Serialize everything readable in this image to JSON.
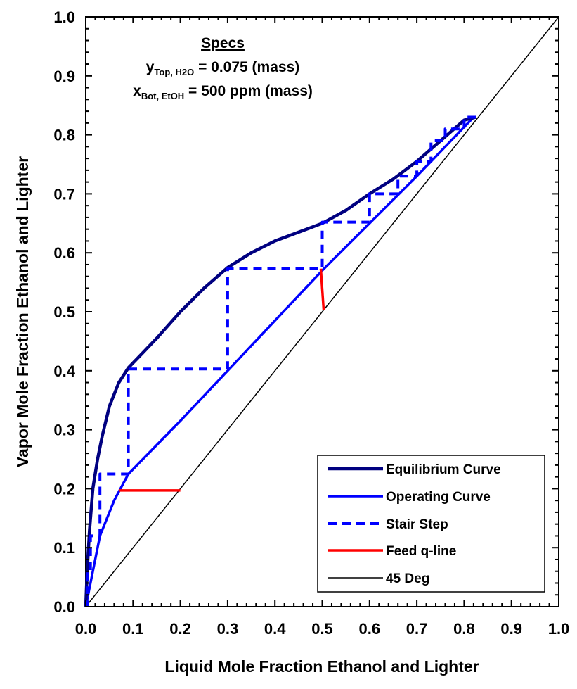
{
  "chart_data": {
    "type": "line",
    "xlabel": "Liquid Mole Fraction Ethanol and Lighter",
    "ylabel": "Vapor Mole Fraction Ethanol and Lighter",
    "xlim": [
      0,
      1
    ],
    "ylim": [
      0,
      1
    ],
    "x_ticks": [
      "0.0",
      "0.1",
      "0.2",
      "0.3",
      "0.4",
      "0.5",
      "0.6",
      "0.7",
      "0.8",
      "0.9",
      "1.0"
    ],
    "y_ticks": [
      "0.0",
      "0.1",
      "0.2",
      "0.3",
      "0.4",
      "0.5",
      "0.6",
      "0.7",
      "0.8",
      "0.9",
      "1.0"
    ],
    "grid": false,
    "legend_position": "bottom-right",
    "specs": {
      "title": "Specs",
      "line1": {
        "var": "y",
        "sub": "Top, H2O",
        "text": " = 0.075 (mass)"
      },
      "line2": {
        "var": "x",
        "sub": "Bot, EtOH",
        "text": " = 500 ppm (mass)"
      }
    },
    "series": [
      {
        "name": "Equilibrium Curve",
        "color": "#000080",
        "style": "solid",
        "points": [
          [
            0,
            0
          ],
          [
            0.003,
            0.06
          ],
          [
            0.008,
            0.13
          ],
          [
            0.015,
            0.2
          ],
          [
            0.025,
            0.25
          ],
          [
            0.035,
            0.29
          ],
          [
            0.05,
            0.34
          ],
          [
            0.07,
            0.38
          ],
          [
            0.09,
            0.405
          ],
          [
            0.12,
            0.43
          ],
          [
            0.15,
            0.455
          ],
          [
            0.2,
            0.5
          ],
          [
            0.25,
            0.54
          ],
          [
            0.3,
            0.575
          ],
          [
            0.35,
            0.6
          ],
          [
            0.4,
            0.62
          ],
          [
            0.45,
            0.635
          ],
          [
            0.5,
            0.65
          ],
          [
            0.55,
            0.672
          ],
          [
            0.6,
            0.7
          ],
          [
            0.65,
            0.725
          ],
          [
            0.7,
            0.755
          ],
          [
            0.75,
            0.79
          ],
          [
            0.8,
            0.825
          ],
          [
            0.825,
            0.83
          ]
        ]
      },
      {
        "name": "Operating Curve",
        "color": "#0000ff",
        "style": "solid",
        "points": [
          [
            0,
            0
          ],
          [
            0.03,
            0.12
          ],
          [
            0.06,
            0.18
          ],
          [
            0.09,
            0.225
          ],
          [
            0.2,
            0.315
          ],
          [
            0.3,
            0.4
          ],
          [
            0.4,
            0.485
          ],
          [
            0.5,
            0.57
          ],
          [
            0.6,
            0.65
          ],
          [
            0.7,
            0.73
          ],
          [
            0.82,
            0.83
          ]
        ]
      },
      {
        "name": "Stair Step",
        "color": "#0000ff",
        "style": "dashed",
        "points": [
          [
            0.825,
            0.83
          ],
          [
            0.8,
            0.83
          ],
          [
            0.8,
            0.81
          ],
          [
            0.76,
            0.81
          ],
          [
            0.76,
            0.79
          ],
          [
            0.73,
            0.79
          ],
          [
            0.73,
            0.755
          ],
          [
            0.7,
            0.755
          ],
          [
            0.7,
            0.73
          ],
          [
            0.66,
            0.73
          ],
          [
            0.66,
            0.7
          ],
          [
            0.6,
            0.7
          ],
          [
            0.6,
            0.652
          ],
          [
            0.5,
            0.652
          ],
          [
            0.5,
            0.573
          ],
          [
            0.3,
            0.573
          ],
          [
            0.3,
            0.403
          ],
          [
            0.09,
            0.403
          ],
          [
            0.09,
            0.225
          ],
          [
            0.03,
            0.225
          ],
          [
            0.03,
            0.12
          ],
          [
            0.01,
            0.12
          ],
          [
            0.01,
            0.06
          ],
          [
            0.003,
            0.06
          ],
          [
            0.003,
            0
          ]
        ]
      },
      {
        "name": "Feed q-line",
        "color": "#ff0000",
        "style": "solid",
        "segments": [
          [
            [
              0.497,
              0.573
            ],
            [
              0.503,
              0.503
            ]
          ],
          [
            [
              0.07,
              0.197
            ],
            [
              0.2,
              0.197
            ]
          ]
        ]
      },
      {
        "name": "45 Deg",
        "color": "#000000",
        "style": "thin",
        "points": [
          [
            0,
            0
          ],
          [
            1,
            1
          ]
        ]
      }
    ]
  }
}
